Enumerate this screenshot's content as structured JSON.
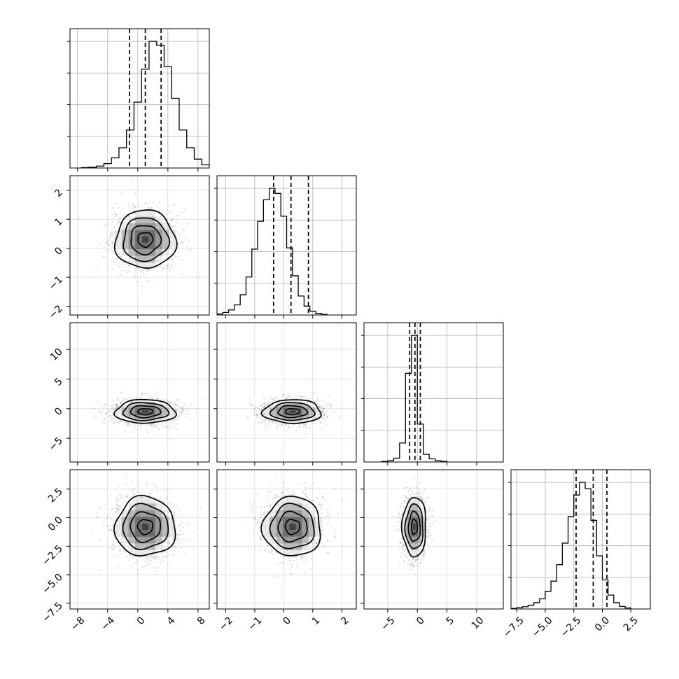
{
  "chart_data": {
    "type": "corner",
    "grid": true,
    "params": [
      {
        "range": [
          -9,
          9.5
        ],
        "ticks": [
          -8,
          -4,
          0,
          4,
          8
        ],
        "tick_labels": [
          "−8",
          "−4",
          "0",
          "4",
          "8"
        ],
        "mean": 1,
        "sd": 2,
        "quantiles": [
          -1.1,
          1.0,
          3.1
        ]
      },
      {
        "range": [
          -2.3,
          2.5
        ],
        "ticks": [
          -2,
          -1,
          0,
          1,
          2
        ],
        "tick_labels": [
          "−2",
          "−1",
          "0",
          "1",
          "2"
        ],
        "mean": 0.3,
        "sd": 0.5,
        "quantiles": [
          -0.35,
          0.25,
          0.85
        ]
      },
      {
        "range": [
          -9,
          14.5
        ],
        "ticks": [
          -5,
          0,
          5,
          10
        ],
        "tick_labels": [
          "−5",
          "0",
          "5",
          "10"
        ],
        "mean": -0.5,
        "sd": 1,
        "quantiles": [
          -1.3,
          -0.4,
          0.5
        ]
      },
      {
        "range": [
          -8,
          4.2
        ],
        "ticks": [
          -7.5,
          -5.0,
          -2.5,
          0.0,
          2.5
        ],
        "tick_labels": [
          "−7.5",
          "−5.0",
          "−2.5",
          "0.0",
          "2.5"
        ],
        "mean": -0.8,
        "sd": 1.3,
        "quantiles": [
          -2.3,
          -0.8,
          0.4
        ]
      }
    ],
    "histograms": [
      {
        "param": 0,
        "bin_start": -7.5,
        "bin_width": 1,
        "counts": [
          3,
          6,
          15,
          35,
          80,
          160,
          300,
          520,
          780,
          1000,
          970,
          800,
          550,
          300,
          160,
          70,
          25,
          10,
          4
        ]
      },
      {
        "param": 1,
        "bin_start": -2.3,
        "bin_width": 0.2,
        "counts": [
          8,
          20,
          40,
          80,
          160,
          300,
          520,
          740,
          910,
          1000,
          960,
          780,
          530,
          310,
          150,
          70,
          30,
          12,
          5
        ]
      },
      {
        "param": 2,
        "bin_start": -6,
        "bin_width": 1,
        "counts": [
          5,
          10,
          30,
          150,
          700,
          1000,
          300,
          60,
          25,
          10,
          5
        ]
      },
      {
        "param": 3,
        "bin_start": -8,
        "bin_width": 0.5,
        "counts": [
          5,
          10,
          18,
          30,
          50,
          80,
          140,
          220,
          350,
          520,
          730,
          900,
          1000,
          950,
          700,
          420,
          230,
          110,
          50,
          20,
          8
        ]
      }
    ],
    "pairs": [
      {
        "x": 0,
        "y": 1,
        "corr": 0.0
      },
      {
        "x": 0,
        "y": 2,
        "corr": 0.0
      },
      {
        "x": 1,
        "y": 2,
        "corr": 0.0
      },
      {
        "x": 0,
        "y": 3,
        "corr": 0.0
      },
      {
        "x": 1,
        "y": 3,
        "corr": 0.0
      },
      {
        "x": 2,
        "y": 3,
        "corr": 0.0
      }
    ],
    "contour_levels_sigma": [
      0.5,
      1.0,
      1.5,
      2.0
    ],
    "scatter": "grey points",
    "quantile_lines": "dashed"
  }
}
